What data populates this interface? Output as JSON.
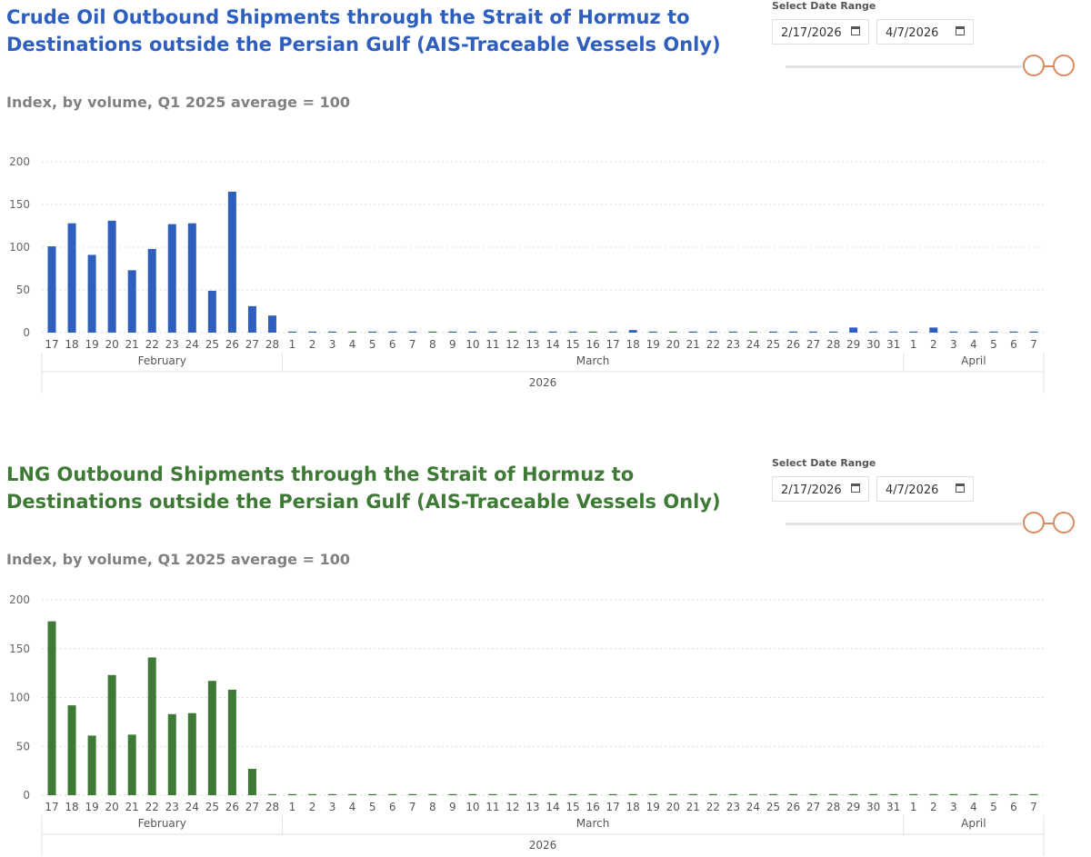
{
  "charts": [
    {
      "title": "Crude Oil Outbound Shipments through the Strait of Hormuz to Destinations outside the Persian Gulf (AIS-Traceable Vessels Only)",
      "subtitle": "Index, by volume, Q1 2025 average = 100",
      "color": "#2e5fbf",
      "slicer": {
        "label": "Select Date Range",
        "start": "2/17/2026",
        "end": "4/7/2026"
      }
    },
    {
      "title": "LNG Outbound Shipments through the Strait of Hormuz to Destinations outside the Persian Gulf (AIS-Traceable Vessels Only)",
      "subtitle": "Index, by volume, Q1 2025 average = 100",
      "color": "#3e7a36",
      "slicer": {
        "label": "Select Date Range",
        "start": "2/17/2026",
        "end": "4/7/2026"
      }
    }
  ],
  "chart_data": [
    {
      "type": "bar",
      "title": "Crude Oil Outbound Shipments through the Strait of Hormuz to Destinations outside the Persian Gulf (AIS-Traceable Vessels Only)",
      "ylabel": "Index, by volume, Q1 2025 average = 100",
      "ylim": [
        0,
        200
      ],
      "yticks": [
        0,
        50,
        100,
        150,
        200
      ],
      "grid": true,
      "categories": [
        "17",
        "18",
        "19",
        "20",
        "21",
        "22",
        "23",
        "24",
        "25",
        "26",
        "27",
        "28",
        "1",
        "2",
        "3",
        "4",
        "5",
        "6",
        "7",
        "8",
        "9",
        "10",
        "11",
        "12",
        "13",
        "14",
        "15",
        "16",
        "17",
        "18",
        "19",
        "20",
        "21",
        "22",
        "23",
        "24",
        "25",
        "26",
        "27",
        "28",
        "29",
        "30",
        "31",
        "1",
        "2",
        "3",
        "4",
        "5",
        "6",
        "7"
      ],
      "months": [
        {
          "label": "February",
          "start": 0,
          "count": 12
        },
        {
          "label": "March",
          "start": 12,
          "count": 31
        },
        {
          "label": "April",
          "start": 43,
          "count": 7
        }
      ],
      "year": "2026",
      "values": [
        101,
        128,
        91,
        131,
        73,
        98,
        127,
        128,
        49,
        165,
        31,
        20,
        1,
        1,
        1,
        1,
        1,
        1,
        1,
        1,
        1,
        1,
        1,
        1,
        1,
        1,
        1,
        1,
        1,
        3,
        1,
        1,
        1,
        1,
        1,
        1,
        1,
        1,
        1,
        1,
        6,
        1,
        1,
        1,
        6,
        1,
        1,
        1,
        1,
        1
      ]
    },
    {
      "type": "bar",
      "title": "LNG Outbound Shipments through the Strait of Hormuz to Destinations outside the Persian Gulf (AIS-Traceable Vessels Only)",
      "ylabel": "Index, by volume, Q1 2025 average = 100",
      "ylim": [
        0,
        200
      ],
      "yticks": [
        0,
        50,
        100,
        150,
        200
      ],
      "grid": true,
      "categories": [
        "17",
        "18",
        "19",
        "20",
        "21",
        "22",
        "23",
        "24",
        "25",
        "26",
        "27",
        "28",
        "1",
        "2",
        "3",
        "4",
        "5",
        "6",
        "7",
        "8",
        "9",
        "10",
        "11",
        "12",
        "13",
        "14",
        "15",
        "16",
        "17",
        "18",
        "19",
        "20",
        "21",
        "22",
        "23",
        "24",
        "25",
        "26",
        "27",
        "28",
        "29",
        "30",
        "31",
        "1",
        "2",
        "3",
        "4",
        "5",
        "6",
        "7"
      ],
      "months": [
        {
          "label": "February",
          "start": 0,
          "count": 12
        },
        {
          "label": "March",
          "start": 12,
          "count": 31
        },
        {
          "label": "April",
          "start": 43,
          "count": 7
        }
      ],
      "year": "2026",
      "values": [
        178,
        92,
        61,
        123,
        62,
        141,
        83,
        84,
        117,
        108,
        27,
        0,
        0,
        0,
        0,
        0,
        0,
        0,
        0,
        0,
        0,
        0,
        0,
        0,
        0,
        0,
        0,
        0,
        0,
        0,
        0,
        0,
        0,
        0,
        0,
        0,
        0,
        0,
        0,
        0,
        0,
        0,
        0,
        0,
        0,
        0,
        0,
        0,
        0,
        0
      ]
    }
  ]
}
